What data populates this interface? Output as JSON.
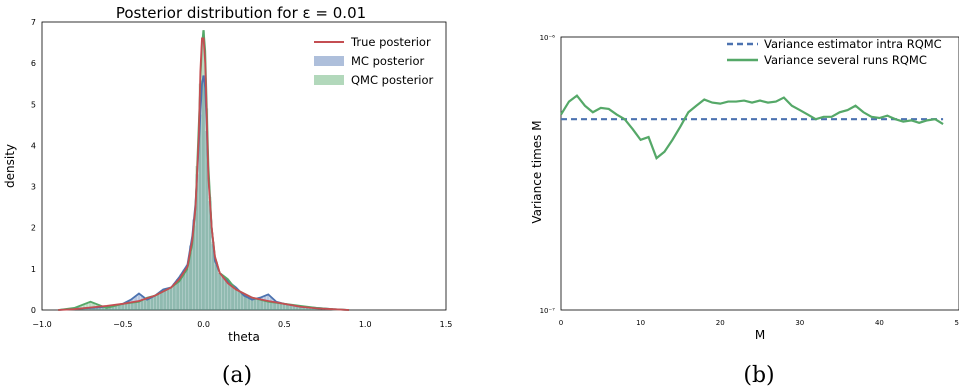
{
  "chart_data": [
    {
      "id": "a",
      "type": "bar",
      "title": "Posterior distribution for ε = 0.01",
      "xlabel": "theta",
      "ylabel": "density",
      "xlim": [
        -1.0,
        1.5
      ],
      "ylim": [
        0,
        7
      ],
      "xticks": [
        "−1.0",
        "−0.5",
        "0.0",
        "0.5",
        "1.0",
        "1.5"
      ],
      "yticks": [
        "0",
        "1",
        "2",
        "3",
        "4",
        "5",
        "6",
        "7"
      ],
      "legend_position": "top-right",
      "grid": false,
      "colors": {
        "true": "#c44e52",
        "mc": "#4c72b0",
        "qmc": "#55a868"
      },
      "series": [
        {
          "name": "True posterior",
          "kind": "line",
          "x": [
            -0.9,
            -0.8,
            -0.7,
            -0.6,
            -0.5,
            -0.4,
            -0.3,
            -0.25,
            -0.2,
            -0.15,
            -0.1,
            -0.07,
            -0.05,
            -0.03,
            -0.02,
            -0.01,
            0.0,
            0.01,
            0.02,
            0.03,
            0.05,
            0.07,
            0.1,
            0.15,
            0.2,
            0.3,
            0.4,
            0.5,
            0.6,
            0.7,
            0.8,
            0.9
          ],
          "y": [
            0.0,
            0.02,
            0.06,
            0.1,
            0.15,
            0.22,
            0.35,
            0.45,
            0.55,
            0.75,
            1.05,
            1.7,
            2.5,
            4.2,
            5.8,
            6.6,
            6.6,
            6.0,
            4.6,
            3.2,
            2.0,
            1.3,
            0.9,
            0.65,
            0.5,
            0.3,
            0.22,
            0.15,
            0.08,
            0.04,
            0.02,
            0.0
          ]
        },
        {
          "name": "MC posterior",
          "kind": "histogram+kde",
          "x": [
            -0.9,
            -0.8,
            -0.7,
            -0.6,
            -0.5,
            -0.45,
            -0.4,
            -0.35,
            -0.3,
            -0.25,
            -0.2,
            -0.15,
            -0.1,
            -0.07,
            -0.05,
            -0.03,
            -0.01,
            0.0,
            0.01,
            0.03,
            0.05,
            0.07,
            0.1,
            0.15,
            0.2,
            0.25,
            0.3,
            0.35,
            0.4,
            0.45,
            0.5,
            0.6,
            0.7,
            0.8,
            0.9
          ],
          "y": [
            0.0,
            0.03,
            0.05,
            0.08,
            0.15,
            0.25,
            0.4,
            0.25,
            0.35,
            0.5,
            0.55,
            0.8,
            1.1,
            1.8,
            2.6,
            4.0,
            5.5,
            5.7,
            5.4,
            3.3,
            2.0,
            1.2,
            0.9,
            0.7,
            0.55,
            0.35,
            0.25,
            0.3,
            0.38,
            0.2,
            0.15,
            0.08,
            0.05,
            0.02,
            0.0
          ]
        },
        {
          "name": "QMC posterior",
          "kind": "histogram+kde",
          "x": [
            -0.9,
            -0.8,
            -0.7,
            -0.6,
            -0.5,
            -0.4,
            -0.35,
            -0.3,
            -0.25,
            -0.2,
            -0.15,
            -0.1,
            -0.07,
            -0.05,
            -0.03,
            -0.01,
            0.0,
            0.01,
            0.03,
            0.05,
            0.07,
            0.1,
            0.15,
            0.2,
            0.25,
            0.3,
            0.4,
            0.5,
            0.6,
            0.7,
            0.8,
            0.9
          ],
          "y": [
            0.0,
            0.05,
            0.2,
            0.05,
            0.15,
            0.2,
            0.3,
            0.35,
            0.45,
            0.55,
            0.7,
            1.0,
            1.6,
            2.5,
            4.5,
            6.5,
            6.8,
            6.3,
            3.5,
            2.0,
            1.3,
            0.9,
            0.75,
            0.5,
            0.4,
            0.3,
            0.2,
            0.15,
            0.1,
            0.05,
            0.02,
            0.0
          ]
        }
      ]
    },
    {
      "id": "b",
      "type": "line",
      "title": "",
      "xlabel": "M",
      "ylabel": "Variance times M",
      "xlim": [
        0,
        50
      ],
      "ylim": [
        1e-07,
        1e-06
      ],
      "yscale": "log",
      "xticks": [
        "0",
        "10",
        "20",
        "30",
        "40",
        "5"
      ],
      "yticks": [
        "10⁻⁷",
        "10⁻⁶"
      ],
      "legend_position": "top-right",
      "grid": false,
      "colors": {
        "estimator": "#4c72b0",
        "runs": "#55a868"
      },
      "series": [
        {
          "name": "Variance estimator intra RQMC",
          "style": "dashed",
          "x": [
            0,
            48
          ],
          "y": [
            5e-07,
            5e-07
          ]
        },
        {
          "name": "Variance several runs RQMC",
          "style": "solid",
          "x": [
            0,
            1,
            2,
            3,
            4,
            5,
            6,
            7,
            8,
            9,
            10,
            11,
            12,
            13,
            14,
            15,
            16,
            17,
            18,
            19,
            20,
            21,
            22,
            23,
            24,
            25,
            26,
            27,
            28,
            29,
            30,
            31,
            32,
            33,
            34,
            35,
            36,
            37,
            38,
            39,
            40,
            41,
            42,
            43,
            44,
            45,
            46,
            47,
            48
          ],
          "y": [
            5.2e-07,
            5.8e-07,
            6.1e-07,
            5.6e-07,
            5.3e-07,
            5.5e-07,
            5.45e-07,
            5.2e-07,
            5e-07,
            4.6e-07,
            4.2e-07,
            4.3e-07,
            3.6e-07,
            3.8e-07,
            4.2e-07,
            4.7e-07,
            5.3e-07,
            5.6e-07,
            5.9e-07,
            5.75e-07,
            5.7e-07,
            5.8e-07,
            5.8e-07,
            5.85e-07,
            5.75e-07,
            5.85e-07,
            5.75e-07,
            5.8e-07,
            6e-07,
            5.6e-07,
            5.4e-07,
            5.2e-07,
            5e-07,
            5.1e-07,
            5.1e-07,
            5.3e-07,
            5.4e-07,
            5.6e-07,
            5.3e-07,
            5.1e-07,
            5.05e-07,
            5.15e-07,
            5e-07,
            4.9e-07,
            4.95e-07,
            4.85e-07,
            4.95e-07,
            5e-07,
            4.8e-07
          ]
        }
      ]
    }
  ],
  "captions": {
    "a": "(a)",
    "b": "(b)"
  }
}
